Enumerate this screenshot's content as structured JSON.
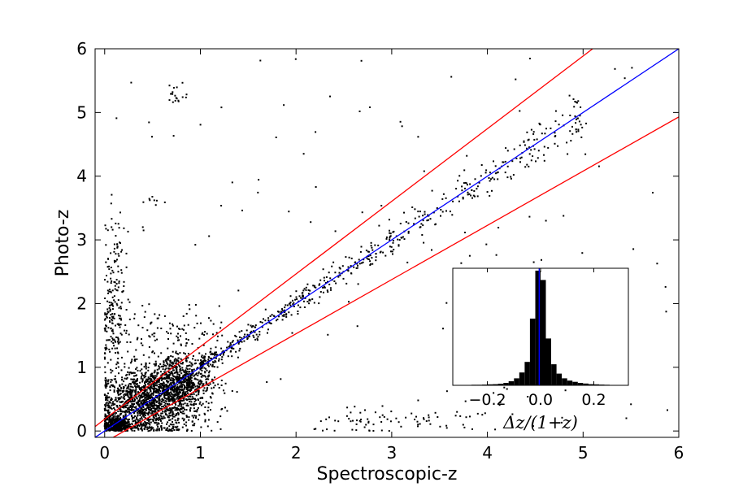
{
  "chart_data": [
    {
      "type": "scatter",
      "xlabel": "Spectroscopic-z",
      "ylabel": "Photo-z",
      "xlim": [
        -0.1,
        6.0
      ],
      "ylim": [
        -0.1,
        6.0
      ],
      "x_ticks": [
        0,
        1,
        2,
        3,
        4,
        5,
        6
      ],
      "y_ticks": [
        0,
        1,
        2,
        3,
        4,
        5,
        6
      ],
      "grid": false,
      "point_color": "#000000",
      "lines": [
        {
          "kind": "one-to-one",
          "color": "#0000ff",
          "x": [
            -0.1,
            6.0
          ],
          "y": [
            -0.1,
            6.0
          ]
        },
        {
          "kind": "upper-outlier-bound",
          "color": "#ff0000",
          "x": [
            -0.1,
            5.1
          ],
          "y": [
            0.07,
            6.0
          ]
        },
        {
          "kind": "lower-outlier-bound",
          "color": "#ff0000",
          "x": [
            0.09,
            6.0
          ],
          "y": [
            -0.1,
            4.93
          ]
        }
      ],
      "clusters": [
        {
          "cx": 0.45,
          "cy": 0.42,
          "sx": 0.28,
          "sy": 0.26,
          "n": 1400
        },
        {
          "cx": 0.75,
          "cy": 0.8,
          "sx": 0.18,
          "sy": 0.2,
          "n": 700
        },
        {
          "cx": 0.12,
          "cy": 0.1,
          "sx": 0.07,
          "sy": 0.07,
          "n": 350
        },
        {
          "cx": 0.75,
          "cy": 5.28,
          "sx": 0.06,
          "sy": 0.08,
          "n": 18
        },
        {
          "cx": 0.5,
          "cy": 3.6,
          "sx": 0.05,
          "sy": 0.04,
          "n": 8
        },
        {
          "cx": 0.1,
          "cy": 2.6,
          "sx": 0.06,
          "sy": 0.45,
          "n": 90
        },
        {
          "cx": 0.08,
          "cy": 1.6,
          "sx": 0.06,
          "sy": 0.35,
          "n": 110
        },
        {
          "cx": 0.7,
          "cy": 1.5,
          "sx": 0.3,
          "sy": 0.25,
          "n": 120
        },
        {
          "cx": 2.7,
          "cy": 0.12,
          "sx": 0.25,
          "sy": 0.1,
          "n": 40
        },
        {
          "cx": 3.4,
          "cy": 0.15,
          "sx": 0.3,
          "sy": 0.1,
          "n": 35
        },
        {
          "cx": 4.3,
          "cy": 0.3,
          "sx": 0.3,
          "sy": 0.2,
          "n": 10
        }
      ],
      "diagonal_points": {
        "x_min": 1.0,
        "x_max": 5.0,
        "n": 560,
        "scatter_frac": 0.03
      },
      "outliers": {
        "n": 130
      }
    },
    {
      "type": "bar",
      "xlabel": "Δz/(1+z)",
      "xlim": [
        -0.33,
        0.33
      ],
      "ylim": [
        0,
        1.0
      ],
      "x_ticks": [
        -0.2,
        0.0,
        0.2
      ],
      "x_tick_labels": [
        "−0.2",
        "0.0",
        "0.2"
      ],
      "bar_color": "#000000",
      "median_line": {
        "x": -0.005,
        "color": "#0000ff"
      },
      "bin_width": 0.02,
      "bins": [
        -0.25,
        -0.23,
        -0.21,
        -0.19,
        -0.17,
        -0.15,
        -0.13,
        -0.11,
        -0.09,
        -0.07,
        -0.05,
        -0.03,
        -0.01,
        0.01,
        0.03,
        0.05,
        0.07,
        0.09,
        0.11,
        0.13,
        0.15,
        0.17,
        0.19,
        0.21,
        0.23,
        0.25
      ],
      "values": [
        0.005,
        0.005,
        0.006,
        0.008,
        0.01,
        0.014,
        0.02,
        0.035,
        0.06,
        0.11,
        0.2,
        0.57,
        0.98,
        0.9,
        0.4,
        0.18,
        0.1,
        0.06,
        0.04,
        0.03,
        0.02,
        0.015,
        0.01,
        0.008,
        0.006,
        0.005
      ]
    }
  ]
}
